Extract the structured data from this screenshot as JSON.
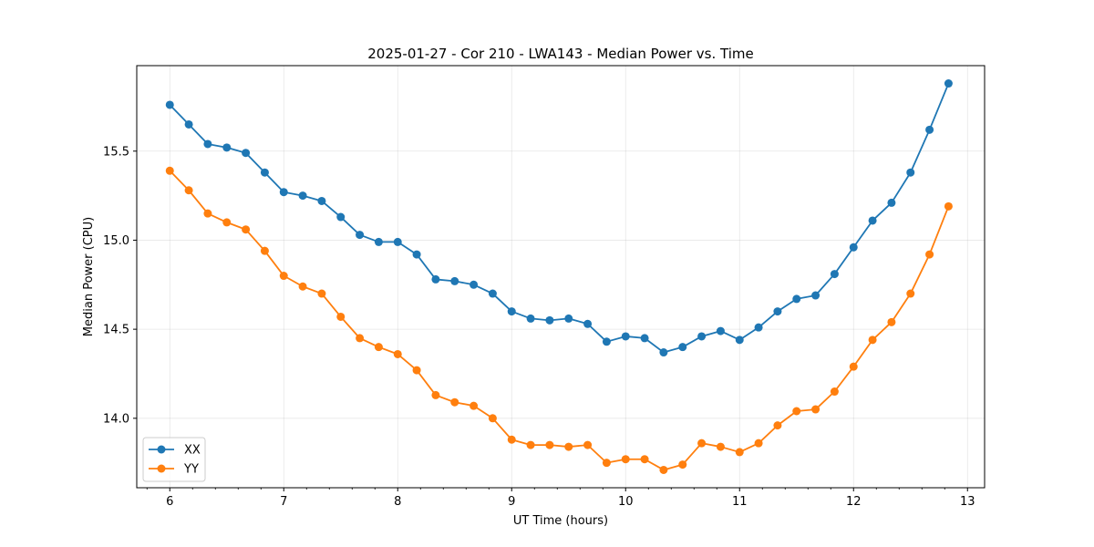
{
  "chart_data": {
    "type": "line",
    "title": "2025-01-27 - Cor 210 - LWA143 - Median Power vs. Time",
    "xlabel": "UT Time (hours)",
    "ylabel": "Median Power (CPU)",
    "xlim": [
      5.71,
      13.15
    ],
    "ylim": [
      13.61,
      15.98
    ],
    "xticks": [
      6,
      7,
      8,
      9,
      10,
      11,
      12,
      13
    ],
    "xtick_labels": [
      "6",
      "7",
      "8",
      "9",
      "10",
      "11",
      "12",
      "13"
    ],
    "yticks": [
      14.0,
      14.5,
      15.0,
      15.5
    ],
    "ytick_labels": [
      "14.0",
      "14.5",
      "15.0",
      "15.5"
    ],
    "grid": true,
    "legend_position": "lower-left",
    "x": [
      6.0,
      6.1667,
      6.3333,
      6.5,
      6.6667,
      6.8333,
      7.0,
      7.1667,
      7.3333,
      7.5,
      7.6667,
      7.8333,
      8.0,
      8.1667,
      8.3333,
      8.5,
      8.6667,
      8.8333,
      9.0,
      9.1667,
      9.3333,
      9.5,
      9.6667,
      9.8333,
      10.0,
      10.1667,
      10.3333,
      10.5,
      10.6667,
      10.8333,
      11.0,
      11.1667,
      11.3333,
      11.5,
      11.6667,
      11.8333,
      12.0,
      12.1667,
      12.3333,
      12.5,
      12.6667,
      12.8333
    ],
    "series": [
      {
        "name": "XX",
        "color": "#1f77b4",
        "values": [
          15.76,
          15.65,
          15.54,
          15.52,
          15.49,
          15.38,
          15.27,
          15.25,
          15.22,
          15.13,
          15.03,
          14.99,
          14.99,
          14.92,
          14.78,
          14.77,
          14.75,
          14.7,
          14.6,
          14.56,
          14.55,
          14.56,
          14.53,
          14.43,
          14.46,
          14.45,
          14.37,
          14.4,
          14.46,
          14.49,
          14.44,
          14.51,
          14.6,
          14.67,
          14.69,
          14.81,
          14.96,
          15.11,
          15.21,
          15.38,
          15.62,
          15.88
        ]
      },
      {
        "name": "YY",
        "color": "#ff7f0e",
        "values": [
          15.39,
          15.28,
          15.15,
          15.1,
          15.06,
          14.94,
          14.8,
          14.74,
          14.7,
          14.57,
          14.45,
          14.4,
          14.36,
          14.27,
          14.13,
          14.09,
          14.07,
          14.0,
          13.88,
          13.85,
          13.85,
          13.84,
          13.85,
          13.75,
          13.77,
          13.77,
          13.71,
          13.74,
          13.86,
          13.84,
          13.81,
          13.86,
          13.96,
          14.04,
          14.05,
          14.15,
          14.29,
          14.44,
          14.54,
          14.7,
          14.92,
          15.19
        ]
      }
    ]
  }
}
